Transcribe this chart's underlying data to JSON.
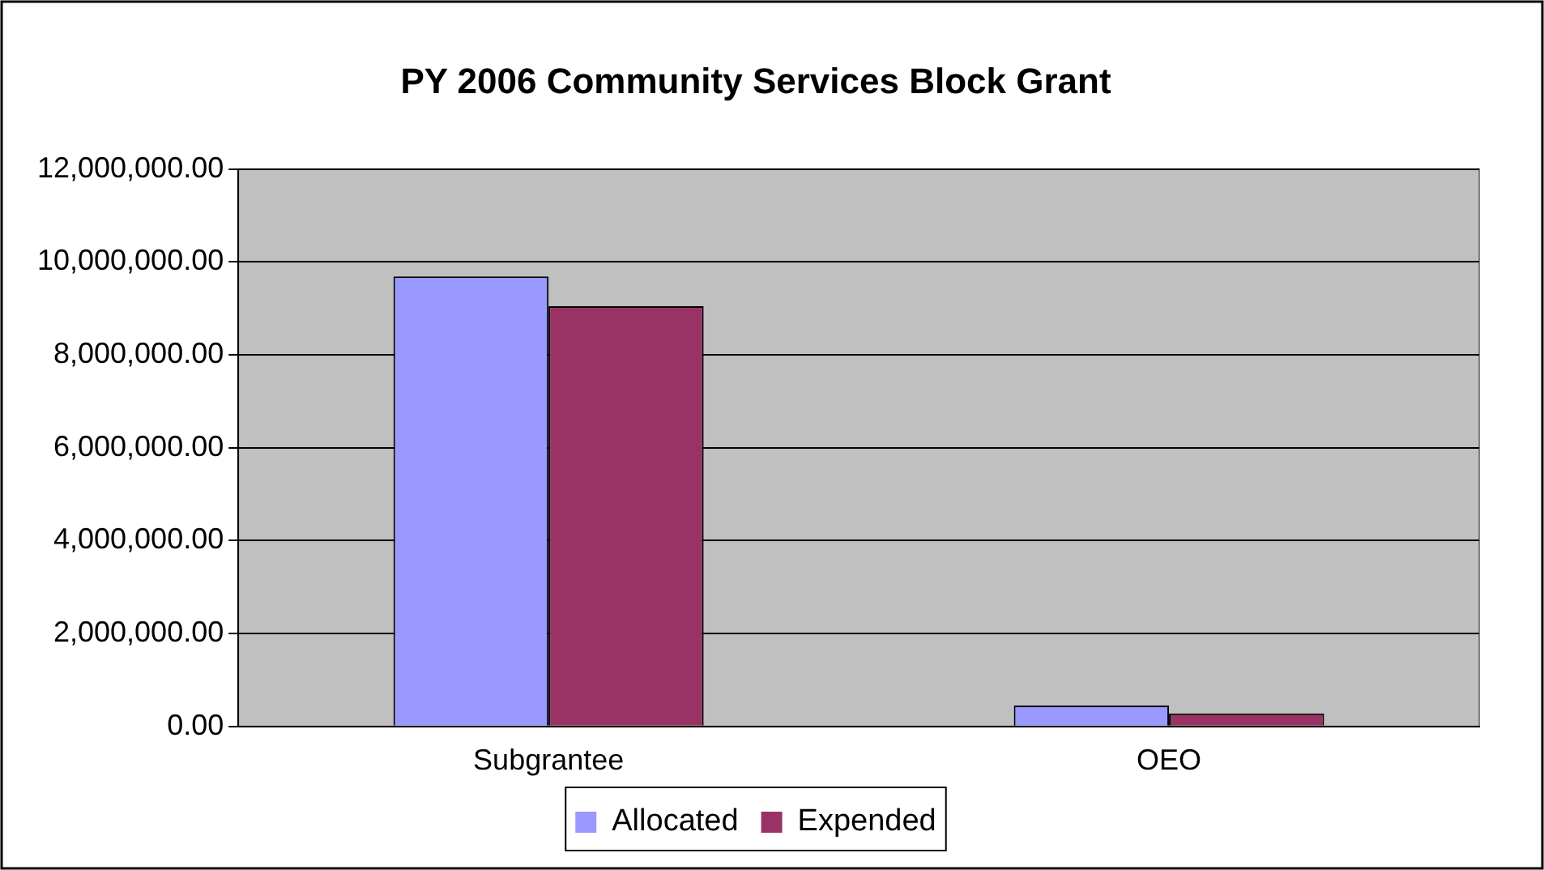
{
  "chart_data": {
    "type": "bar",
    "title": "PY 2006 Community Services Block Grant",
    "categories": [
      "Subgrantee",
      "OEO"
    ],
    "series": [
      {
        "name": "Allocated",
        "color": "#9999ff",
        "values": [
          9690000,
          450000
        ]
      },
      {
        "name": "Expended",
        "color": "#993366",
        "values": [
          9050000,
          280000
        ]
      }
    ],
    "ylim": [
      0,
      12000000
    ],
    "yticks": [
      {
        "value": 0,
        "label": "0.00"
      },
      {
        "value": 2000000,
        "label": "2,000,000.00"
      },
      {
        "value": 4000000,
        "label": "4,000,000.00"
      },
      {
        "value": 6000000,
        "label": "6,000,000.00"
      },
      {
        "value": 8000000,
        "label": "8,000,000.00"
      },
      {
        "value": 10000000,
        "label": "10,000,000.00"
      },
      {
        "value": 12000000,
        "label": "12,000,000.00"
      }
    ],
    "grid": "y",
    "legend": "bottom"
  }
}
